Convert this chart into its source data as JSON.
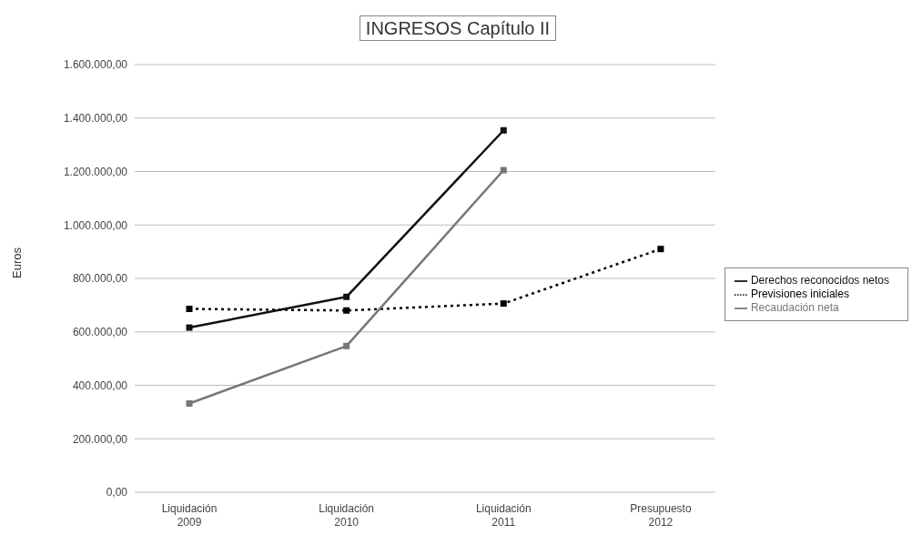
{
  "chart_data": {
    "type": "line",
    "title": "INGRESOS Capítulo II",
    "ylabel": "Euros",
    "categories": [
      "Liquidación 2009",
      "Liquidación 2010",
      "Liquidación 2011",
      "Presupuesto 2012"
    ],
    "series": [
      {
        "name": "Previsiones iniciales",
        "color": "#000000",
        "values": [
          686000,
          680000,
          706000,
          910000
        ],
        "line_style": "dotted"
      },
      {
        "name": "Derechos reconocidos netos",
        "color": "#111111",
        "values": [
          616000,
          731000,
          1354000,
          null
        ]
      },
      {
        "name": "Recaudación neta",
        "color": "#777777",
        "values": [
          332000,
          547000,
          1205000,
          null
        ]
      }
    ],
    "ylim": [
      0,
      1600000
    ],
    "yticks": [
      {
        "value": 0,
        "label": "0,00"
      },
      {
        "value": 200000,
        "label": "200.000,00"
      },
      {
        "value": 400000,
        "label": "400.000,00"
      },
      {
        "value": 600000,
        "label": "600.000,00"
      },
      {
        "value": 800000,
        "label": "800.000,00"
      },
      {
        "value": 1000000,
        "label": "1.000.000,00"
      },
      {
        "value": 1200000,
        "label": "1.200.000,00"
      },
      {
        "value": 1400000,
        "label": "1.400.000,00"
      },
      {
        "value": 1600000,
        "label": "1.600.000,00"
      }
    ],
    "grid": "y",
    "legend": "right",
    "marker": "square"
  }
}
